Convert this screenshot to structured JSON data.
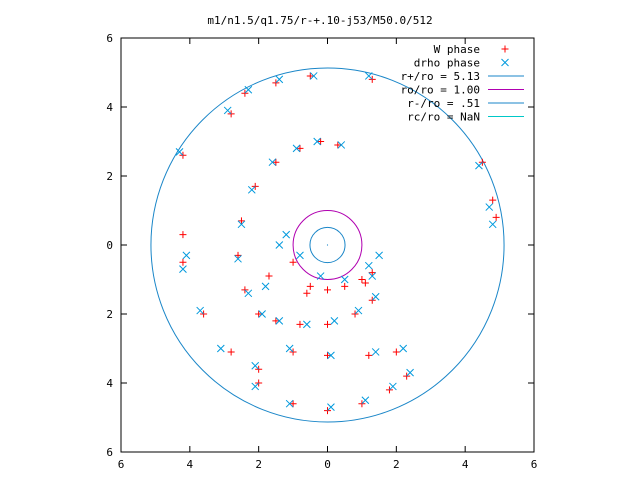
{
  "chart_data": {
    "type": "scatter",
    "title": "m1/n1.5/q1.75/r-+.10-j53/M50.0/512",
    "xlabel": "",
    "ylabel": "",
    "xlim": [
      -6,
      6
    ],
    "ylim": [
      -6,
      6
    ],
    "x_ticks": [
      -6,
      -4,
      -2,
      0,
      2,
      4,
      6
    ],
    "y_ticks": [
      -6,
      -4,
      -2,
      0,
      2,
      4,
      6
    ],
    "x_tick_labels": [
      "6",
      "4",
      "2",
      "0",
      "2",
      "4",
      "6"
    ],
    "y_tick_labels": [
      "6",
      "4",
      "2",
      "0",
      "2",
      "4",
      "6"
    ],
    "grid": false,
    "legend_position": "top-right",
    "colors": {
      "w_phase": "#ff0000",
      "drho_phase": "#0099dd",
      "r_plus": "#1a86c8",
      "r_o": "#b000b0",
      "r_minus": "#1a86c8",
      "r_c": "#00c8c8"
    },
    "legend": [
      {
        "label": "W phase",
        "kind": "plus",
        "color": "#ff0000"
      },
      {
        "label": "drho phase",
        "kind": "cross",
        "color": "#0099dd"
      },
      {
        "label": "r+/ro = 5.13",
        "kind": "line",
        "color": "#1a86c8"
      },
      {
        "label": "ro/ro = 1.00",
        "kind": "line",
        "color": "#b000b0"
      },
      {
        "label": "r-/ro = .51",
        "kind": "line",
        "color": "#1a86c8"
      },
      {
        "label": "rc/ro = NaN",
        "kind": "line",
        "color": "#00c8c8"
      }
    ],
    "circles": [
      {
        "name": "r+/ro",
        "radius": 5.13,
        "color": "#1a86c8"
      },
      {
        "name": "ro/ro",
        "radius": 1.0,
        "color": "#b000b0"
      },
      {
        "name": "r-/ro",
        "radius": 0.51,
        "color": "#1a86c8"
      }
    ],
    "series": [
      {
        "name": "W phase",
        "marker": "plus",
        "color": "#ff0000",
        "points": [
          [
            -1.0,
            -0.5
          ],
          [
            -0.5,
            -1.2
          ],
          [
            0,
            -1.3
          ],
          [
            0.5,
            -1.2
          ],
          [
            1.0,
            -1.0
          ],
          [
            1.3,
            -0.8
          ],
          [
            0.3,
            2.9
          ],
          [
            -0.2,
            3.0
          ],
          [
            -0.8,
            2.8
          ],
          [
            -1.5,
            2.4
          ],
          [
            -2.1,
            1.7
          ],
          [
            -2.5,
            0.7
          ],
          [
            -2.6,
            -0.3
          ],
          [
            -2.4,
            -1.3
          ],
          [
            -2.0,
            -2.0
          ],
          [
            -1.5,
            -2.2
          ],
          [
            -0.8,
            -2.3
          ],
          [
            0,
            -2.3
          ],
          [
            0.8,
            -2.0
          ],
          [
            1.3,
            -1.6
          ],
          [
            -2.8,
            3.8
          ],
          [
            -2.4,
            4.4
          ],
          [
            -1.5,
            4.7
          ],
          [
            -0.5,
            4.9
          ],
          [
            1.3,
            4.8
          ],
          [
            -4.2,
            2.6
          ],
          [
            -4.2,
            0.3
          ],
          [
            -4.2,
            -0.5
          ],
          [
            -3.6,
            -2.0
          ],
          [
            -2.8,
            -3.1
          ],
          [
            -2.0,
            -3.6
          ],
          [
            -1.0,
            -3.1
          ],
          [
            0,
            -3.2
          ],
          [
            1.2,
            -3.2
          ],
          [
            2.0,
            -3.1
          ],
          [
            -2.0,
            -4.0
          ],
          [
            -1.0,
            -4.6
          ],
          [
            0,
            -4.8
          ],
          [
            1.0,
            -4.6
          ],
          [
            1.8,
            -4.2
          ],
          [
            2.3,
            -3.8
          ],
          [
            4.5,
            2.4
          ],
          [
            4.8,
            1.3
          ],
          [
            4.9,
            0.8
          ],
          [
            -0.6,
            -1.4
          ],
          [
            1.1,
            -1.1
          ],
          [
            -1.7,
            -0.9
          ]
        ]
      },
      {
        "name": "drho phase",
        "marker": "cross",
        "color": "#0099dd",
        "points": [
          [
            -1.2,
            0.3
          ],
          [
            -0.8,
            -0.3
          ],
          [
            -0.2,
            -0.9
          ],
          [
            0.5,
            -1.0
          ],
          [
            1.2,
            -0.6
          ],
          [
            1.5,
            -0.3
          ],
          [
            0.4,
            2.9
          ],
          [
            -0.3,
            3.0
          ],
          [
            -0.9,
            2.8
          ],
          [
            -1.6,
            2.4
          ],
          [
            -2.2,
            1.6
          ],
          [
            -2.5,
            0.6
          ],
          [
            -2.6,
            -0.4
          ],
          [
            -2.3,
            -1.4
          ],
          [
            -1.9,
            -2.0
          ],
          [
            -1.4,
            -2.2
          ],
          [
            -0.6,
            -2.3
          ],
          [
            0.2,
            -2.2
          ],
          [
            0.9,
            -1.9
          ],
          [
            1.4,
            -1.5
          ],
          [
            -2.9,
            3.9
          ],
          [
            -2.3,
            4.5
          ],
          [
            -1.4,
            4.8
          ],
          [
            -0.4,
            4.9
          ],
          [
            1.2,
            4.9
          ],
          [
            -4.3,
            2.7
          ],
          [
            -4.1,
            -0.3
          ],
          [
            -4.2,
            -0.7
          ],
          [
            -3.7,
            -1.9
          ],
          [
            -3.1,
            -3.0
          ],
          [
            -2.1,
            -3.5
          ],
          [
            -1.1,
            -3.0
          ],
          [
            0.1,
            -3.2
          ],
          [
            1.4,
            -3.1
          ],
          [
            2.2,
            -3.0
          ],
          [
            -2.1,
            -4.1
          ],
          [
            -1.1,
            -4.6
          ],
          [
            0.1,
            -4.7
          ],
          [
            1.1,
            -4.5
          ],
          [
            1.9,
            -4.1
          ],
          [
            2.4,
            -3.7
          ],
          [
            4.4,
            2.3
          ],
          [
            4.7,
            1.1
          ],
          [
            4.8,
            0.6
          ],
          [
            -1.4,
            0.0
          ],
          [
            1.3,
            -0.9
          ],
          [
            -1.8,
            -1.2
          ]
        ]
      }
    ]
  }
}
